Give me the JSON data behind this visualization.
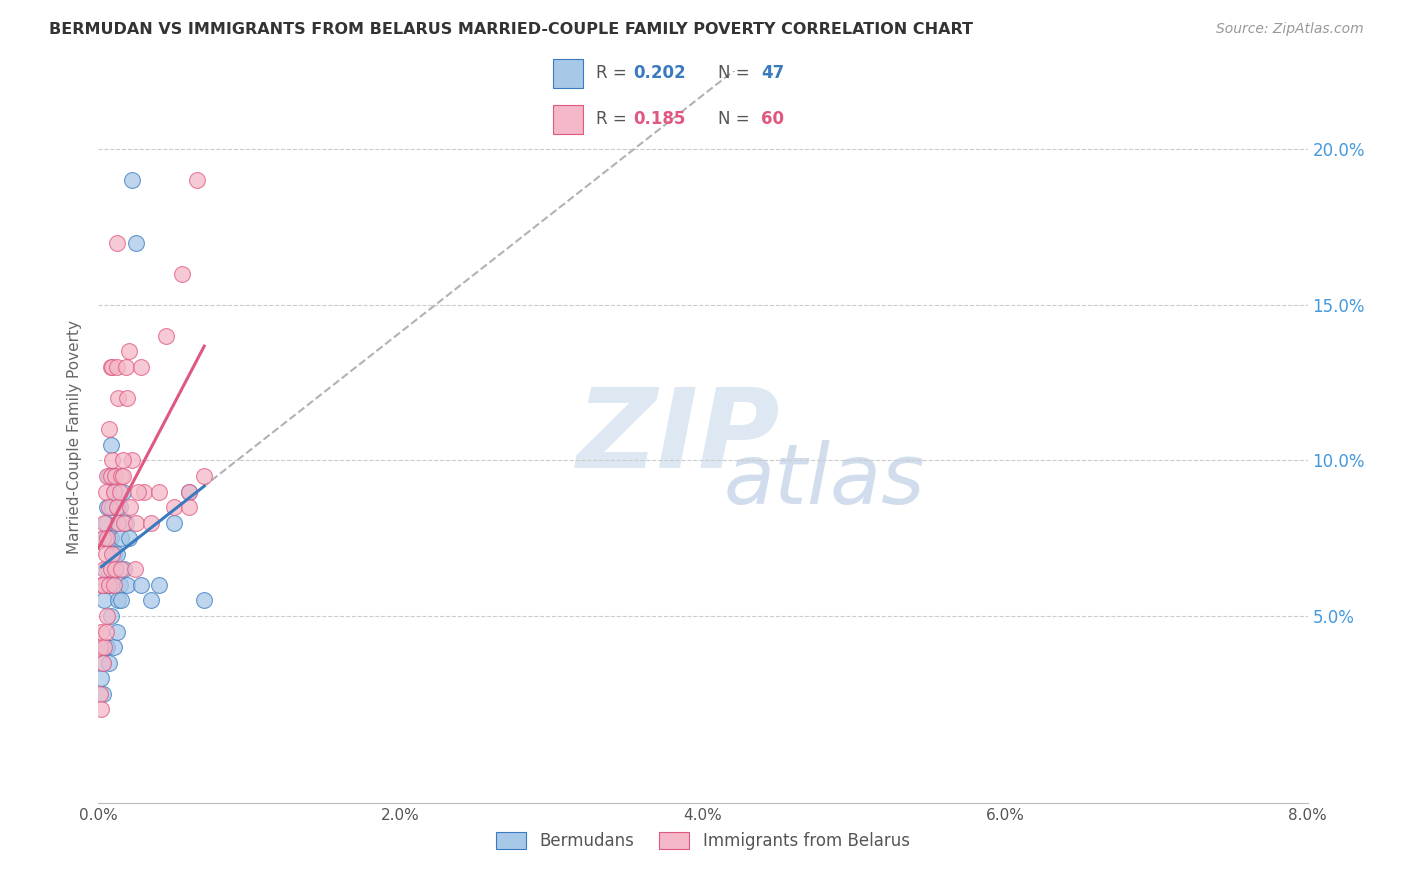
{
  "title": "BERMUDAN VS IMMIGRANTS FROM BELARUS MARRIED-COUPLE FAMILY POVERTY CORRELATION CHART",
  "source": "Source: ZipAtlas.com",
  "ylabel": "Married-Couple Family Poverty",
  "ytick_labels": [
    "5.0%",
    "10.0%",
    "15.0%",
    "20.0%"
  ],
  "ytick_values": [
    0.05,
    0.1,
    0.15,
    0.2
  ],
  "xlim": [
    0.0,
    0.08
  ],
  "ylim": [
    -0.01,
    0.225
  ],
  "color_blue": "#a8c8e8",
  "color_pink": "#f4b8c8",
  "trendline_blue_color": "#3a7abf",
  "trendline_pink_color": "#e05880",
  "trendline_gray_color": "#aaaaaa",
  "bermudans_x": [
    0.0002,
    0.0003,
    0.0003,
    0.0004,
    0.0004,
    0.0005,
    0.0005,
    0.0005,
    0.0006,
    0.0006,
    0.0006,
    0.0007,
    0.0007,
    0.0007,
    0.0007,
    0.0008,
    0.0008,
    0.0008,
    0.0009,
    0.0009,
    0.001,
    0.001,
    0.001,
    0.0011,
    0.0011,
    0.0012,
    0.0012,
    0.0012,
    0.0013,
    0.0013,
    0.0014,
    0.0014,
    0.0015,
    0.0015,
    0.0016,
    0.0017,
    0.0018,
    0.0019,
    0.002,
    0.0022,
    0.0025,
    0.0028,
    0.0035,
    0.004,
    0.005,
    0.006,
    0.007
  ],
  "bermudans_y": [
    0.03,
    0.035,
    0.025,
    0.075,
    0.055,
    0.08,
    0.06,
    0.04,
    0.085,
    0.065,
    0.04,
    0.095,
    0.075,
    0.06,
    0.035,
    0.105,
    0.075,
    0.05,
    0.085,
    0.06,
    0.09,
    0.07,
    0.04,
    0.095,
    0.065,
    0.085,
    0.07,
    0.045,
    0.08,
    0.055,
    0.085,
    0.06,
    0.075,
    0.055,
    0.09,
    0.065,
    0.08,
    0.06,
    0.075,
    0.19,
    0.17,
    0.06,
    0.055,
    0.06,
    0.08,
    0.09,
    0.055
  ],
  "belarus_x": [
    0.0001,
    0.0001,
    0.0002,
    0.0002,
    0.0002,
    0.0003,
    0.0003,
    0.0003,
    0.0004,
    0.0004,
    0.0004,
    0.0005,
    0.0005,
    0.0005,
    0.0006,
    0.0006,
    0.0006,
    0.0007,
    0.0007,
    0.0007,
    0.0008,
    0.0008,
    0.0008,
    0.0009,
    0.0009,
    0.0009,
    0.001,
    0.001,
    0.0011,
    0.0011,
    0.0012,
    0.0012,
    0.0013,
    0.0013,
    0.0014,
    0.0015,
    0.0016,
    0.0017,
    0.0018,
    0.002,
    0.0022,
    0.0025,
    0.0028,
    0.003,
    0.0035,
    0.004,
    0.0045,
    0.005,
    0.0055,
    0.006,
    0.0065,
    0.007,
    0.0015,
    0.0016,
    0.0019,
    0.0021,
    0.0024,
    0.0026,
    0.0012,
    0.006
  ],
  "belarus_y": [
    0.04,
    0.025,
    0.06,
    0.045,
    0.02,
    0.075,
    0.06,
    0.035,
    0.08,
    0.065,
    0.04,
    0.09,
    0.07,
    0.045,
    0.095,
    0.075,
    0.05,
    0.11,
    0.085,
    0.06,
    0.13,
    0.095,
    0.065,
    0.13,
    0.1,
    0.07,
    0.09,
    0.06,
    0.095,
    0.065,
    0.13,
    0.085,
    0.12,
    0.08,
    0.09,
    0.095,
    0.095,
    0.08,
    0.13,
    0.135,
    0.1,
    0.08,
    0.13,
    0.09,
    0.08,
    0.09,
    0.14,
    0.085,
    0.16,
    0.09,
    0.19,
    0.095,
    0.065,
    0.1,
    0.12,
    0.085,
    0.065,
    0.09,
    0.17,
    0.085
  ]
}
